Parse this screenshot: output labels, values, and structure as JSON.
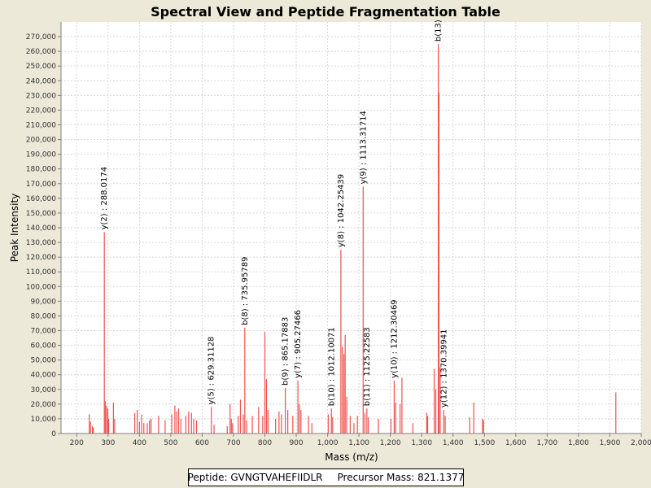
{
  "chart_data": {
    "type": "bar",
    "title": "Spectral View and Peptide Fragmentation Table",
    "xlabel": "Mass (m/z)",
    "ylabel": "Peak Intensity",
    "xlim": [
      150,
      2000
    ],
    "ylim": [
      0,
      280000
    ],
    "x_ticks": [
      "200",
      "300",
      "400",
      "500",
      "600",
      "700",
      "800",
      "900",
      "1,000",
      "1,100",
      "1,200",
      "1,300",
      "1,400",
      "1,500",
      "1,600",
      "1,700",
      "1,800",
      "1,900",
      "2,000"
    ],
    "y_ticks": [
      "0",
      "10,000",
      "20,000",
      "30,000",
      "40,000",
      "50,000",
      "60,000",
      "70,000",
      "80,000",
      "90,000",
      "100,000",
      "110,000",
      "120,000",
      "130,000",
      "140,000",
      "150,000",
      "160,000",
      "170,000",
      "180,000",
      "190,000",
      "200,000",
      "210,000",
      "220,000",
      "230,000",
      "240,000",
      "250,000",
      "260,000",
      "270,000"
    ],
    "grid": true,
    "peak_color": "#f05050",
    "peaks": [
      [
        240,
        13000
      ],
      [
        244,
        8000
      ],
      [
        250,
        5000
      ],
      [
        253,
        4000
      ],
      [
        288.0174,
        137000
      ],
      [
        291,
        22000
      ],
      [
        295,
        19000
      ],
      [
        299,
        17000
      ],
      [
        302,
        10000
      ],
      [
        317,
        21000
      ],
      [
        321,
        10000
      ],
      [
        385,
        14000
      ],
      [
        393,
        16000
      ],
      [
        400,
        8000
      ],
      [
        407,
        13000
      ],
      [
        414,
        7000
      ],
      [
        425,
        7000
      ],
      [
        432,
        9000
      ],
      [
        437,
        10000
      ],
      [
        461,
        12000
      ],
      [
        482,
        9000
      ],
      [
        503,
        13000
      ],
      [
        513,
        19000
      ],
      [
        519,
        15000
      ],
      [
        525,
        17000
      ],
      [
        532,
        10000
      ],
      [
        548,
        12000
      ],
      [
        557,
        15000
      ],
      [
        566,
        14000
      ],
      [
        573,
        10000
      ],
      [
        582,
        9000
      ],
      [
        629.31128,
        18000
      ],
      [
        638,
        6000
      ],
      [
        680,
        5000
      ],
      [
        689,
        20000
      ],
      [
        693,
        10000
      ],
      [
        697,
        7000
      ],
      [
        715,
        12000
      ],
      [
        722,
        23000
      ],
      [
        731,
        13000
      ],
      [
        735.95789,
        72000
      ],
      [
        742,
        9000
      ],
      [
        760,
        12000
      ],
      [
        780,
        18000
      ],
      [
        793,
        12000
      ],
      [
        800,
        69000
      ],
      [
        805,
        37000
      ],
      [
        810,
        16000
      ],
      [
        834,
        10000
      ],
      [
        845,
        15000
      ],
      [
        853,
        13000
      ],
      [
        865.17883,
        31000
      ],
      [
        873,
        16000
      ],
      [
        889,
        12000
      ],
      [
        905.27466,
        36000
      ],
      [
        910,
        20000
      ],
      [
        915,
        16000
      ],
      [
        939,
        12000
      ],
      [
        950,
        7000
      ],
      [
        1002,
        13000
      ],
      [
        1012.10071,
        17000
      ],
      [
        1016,
        11000
      ],
      [
        1042.25439,
        125000
      ],
      [
        1047,
        59000
      ],
      [
        1052,
        54000
      ],
      [
        1056,
        67000
      ],
      [
        1061,
        25000
      ],
      [
        1072,
        12000
      ],
      [
        1084,
        7000
      ],
      [
        1095,
        12000
      ],
      [
        1113.31714,
        168000
      ],
      [
        1119,
        14000
      ],
      [
        1125.22583,
        17000
      ],
      [
        1130,
        11000
      ],
      [
        1162,
        10000
      ],
      [
        1202,
        10000
      ],
      [
        1212.30469,
        36000
      ],
      [
        1217,
        21000
      ],
      [
        1231,
        20000
      ],
      [
        1237,
        38000
      ],
      [
        1272,
        7000
      ],
      [
        1316,
        14000
      ],
      [
        1319,
        12000
      ],
      [
        1340,
        44000
      ],
      [
        1345,
        30000
      ],
      [
        1353,
        265000
      ],
      [
        1355,
        232000
      ],
      [
        1359,
        45000
      ],
      [
        1370.39941,
        16000
      ],
      [
        1375,
        12000
      ],
      [
        1453,
        11000
      ],
      [
        1466,
        21000
      ],
      [
        1494,
        10000
      ],
      [
        1497,
        9000
      ],
      [
        1919,
        28000
      ]
    ],
    "annotations": [
      {
        "label": "y(2) : 288.0174",
        "x": 288.0174,
        "y": 137000
      },
      {
        "label": "y(5) : 629.31128",
        "x": 629.31128,
        "y": 18000
      },
      {
        "label": "b(8) : 735.95789",
        "x": 735.95789,
        "y": 72000
      },
      {
        "label": "b(9) : 865.17883",
        "x": 865.17883,
        "y": 31000
      },
      {
        "label": "y(7) : 905.27466",
        "x": 905.27466,
        "y": 36000
      },
      {
        "label": "b(10) : 1012.10071",
        "x": 1012.10071,
        "y": 17000
      },
      {
        "label": "y(8) : 1042.25439",
        "x": 1042.25439,
        "y": 125000
      },
      {
        "label": "y(9) : 1113.31714",
        "x": 1113.31714,
        "y": 168000
      },
      {
        "label": "b(11) : 1125.22583",
        "x": 1125.22583,
        "y": 17000
      },
      {
        "label": "y(10) : 1212.30469",
        "x": 1212.30469,
        "y": 36000
      },
      {
        "label": "y(12) : 1370.39941",
        "x": 1370.39941,
        "y": 16000
      },
      {
        "label": "b(13)",
        "x": 1353,
        "y": 265000
      }
    ]
  },
  "info": {
    "peptide": "Peptide: GVNGTVAHEFIIDLR",
    "precursor": "Precursor Mass: 821.1377"
  }
}
